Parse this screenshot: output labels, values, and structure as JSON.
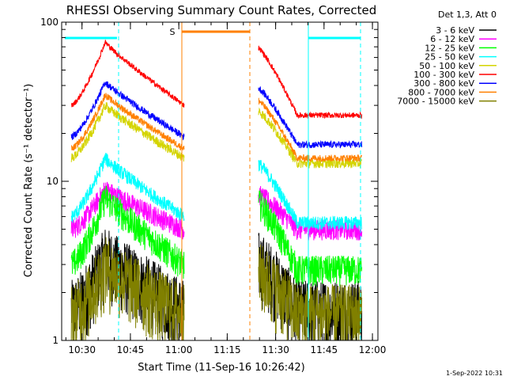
{
  "chart_data": {
    "type": "line",
    "title": "RHESSI Observing Summary Count Rates, Corrected",
    "xlabel": "Start Time (11-Sep-16 10:26:42)",
    "ylabel": "Corrected Count Rate (s⁻¹ detector⁻¹)",
    "yscale": "log",
    "ylim": [
      1,
      100
    ],
    "xlim_minutes": [
      -3,
      95
    ],
    "x_ticks": [
      "10:30",
      "10:45",
      "11:00",
      "11:15",
      "11:30",
      "11:45",
      "12:00"
    ],
    "y_ticks": [
      "1",
      "10",
      "100"
    ],
    "legend_header": "Det 1,3, Att 0",
    "legend_position": "right",
    "timestamp": "1-Sep-2022 10:31",
    "flag_marker": "S",
    "data_gaps_minutes": [
      [
        35,
        58
      ]
    ],
    "series": [
      {
        "name": "3 - 6 keV",
        "color": "#000000",
        "peak_time": 10.5,
        "levels_before_peak_after": [
          1.6,
          3.5,
          1.6
        ],
        "noise": 0.5
      },
      {
        "name": "6 - 12 keV",
        "color": "#ff00ff",
        "peak_time": 10.5,
        "levels_before_peak_after": [
          5.0,
          9.0,
          5.0
        ],
        "noise": 0.15
      },
      {
        "name": "12 - 25 keV",
        "color": "#00ff00",
        "peak_time": 10.5,
        "levels_before_peak_after": [
          3.0,
          8.0,
          2.8
        ],
        "noise": 0.22
      },
      {
        "name": "25 - 50 keV",
        "color": "#00ffff",
        "peak_time": 10.5,
        "levels_before_peak_after": [
          6.0,
          14.0,
          5.5
        ],
        "noise": 0.1
      },
      {
        "name": "50 - 100 keV",
        "color": "#d4d400",
        "peak_time": 10.5,
        "levels_before_peak_after": [
          14.0,
          30.0,
          13.0
        ],
        "noise": 0.07
      },
      {
        "name": "100 - 300 keV",
        "color": "#ff0000",
        "peak_time": 10.5,
        "levels_before_peak_after": [
          30.0,
          75.0,
          26.0
        ],
        "noise": 0.04
      },
      {
        "name": "300 - 800 keV",
        "color": "#0000ff",
        "peak_time": 10.5,
        "levels_before_peak_after": [
          19.0,
          42.0,
          17.0
        ],
        "noise": 0.05
      },
      {
        "name": "800 - 7000 keV",
        "color": "#ff8000",
        "peak_time": 10.5,
        "levels_before_peak_after": [
          16.0,
          35.0,
          14.0
        ],
        "noise": 0.05
      },
      {
        "name": "7000 - 15000 keV",
        "color": "#808000",
        "peak_time": 10.5,
        "levels_before_peak_after": [
          1.5,
          3.0,
          1.5
        ],
        "noise": 0.5
      }
    ]
  }
}
